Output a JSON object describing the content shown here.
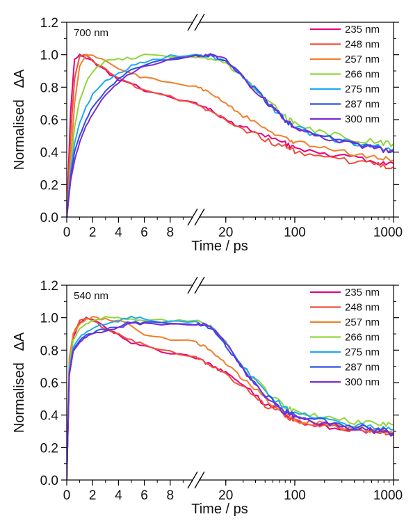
{
  "figure": {
    "background": "#ffffff",
    "break_mark": "//"
  },
  "chart_data": [
    {
      "type": "line",
      "panel_label": "700 nm",
      "xlabel": "Time / ps",
      "ylabel": "Normalised   ΔA",
      "x_scale": "piecewise: linear 0 to 10 ps, then log 10 to 1000 ps (axis break at 10 ps)",
      "xlim": [
        0,
        1000
      ],
      "ylim": [
        0,
        1.2
      ],
      "xticks_linear": [
        0,
        2,
        4,
        6,
        8
      ],
      "xticks_log": [
        20,
        100,
        1000
      ],
      "yticks": [
        0.0,
        0.2,
        0.4,
        0.6,
        0.8,
        1.0,
        1.2
      ],
      "legend_position": "top-right",
      "grid": false,
      "series": [
        {
          "name": "235 nm",
          "color": "#e6007e",
          "x": [
            0,
            0.3,
            0.6,
            1.0,
            1.5,
            2,
            3,
            4,
            5,
            6,
            8,
            10,
            14,
            20,
            30,
            50,
            80,
            100,
            200,
            400,
            700,
            1000
          ],
          "y": [
            0,
            0.65,
            0.97,
            1.0,
            0.98,
            0.96,
            0.9,
            0.85,
            0.82,
            0.78,
            0.74,
            0.7,
            0.66,
            0.6,
            0.55,
            0.5,
            0.45,
            0.42,
            0.39,
            0.36,
            0.34,
            0.33
          ]
        },
        {
          "name": "248 nm",
          "color": "#f04e37",
          "x": [
            0,
            0.3,
            0.6,
            1.0,
            1.5,
            2,
            3,
            4,
            5,
            6,
            8,
            10,
            14,
            20,
            30,
            50,
            80,
            100,
            200,
            400,
            700,
            1000
          ],
          "y": [
            0,
            0.5,
            0.85,
            0.99,
            1.0,
            0.97,
            0.91,
            0.86,
            0.82,
            0.78,
            0.74,
            0.7,
            0.65,
            0.6,
            0.54,
            0.48,
            0.43,
            0.41,
            0.37,
            0.34,
            0.32,
            0.31
          ]
        },
        {
          "name": "257 nm",
          "color": "#f07f2a",
          "x": [
            0,
            0.3,
            0.6,
            1.0,
            1.5,
            2,
            3,
            4,
            5,
            6,
            8,
            10,
            14,
            20,
            30,
            50,
            80,
            100,
            200,
            400,
            700,
            1000
          ],
          "y": [
            0,
            0.35,
            0.7,
            0.93,
            1.0,
            1.0,
            0.96,
            0.91,
            0.88,
            0.86,
            0.83,
            0.81,
            0.76,
            0.7,
            0.62,
            0.55,
            0.49,
            0.46,
            0.42,
            0.39,
            0.37,
            0.35
          ]
        },
        {
          "name": "266 nm",
          "color": "#8fd63a",
          "x": [
            0,
            0.3,
            0.6,
            1.0,
            1.5,
            2,
            3,
            4,
            5,
            6,
            8,
            10,
            14,
            20,
            30,
            50,
            80,
            100,
            200,
            400,
            700,
            1000
          ],
          "y": [
            0,
            0.3,
            0.55,
            0.72,
            0.83,
            0.9,
            0.96,
            0.97,
            0.98,
            1.0,
            0.99,
            0.98,
            0.98,
            0.95,
            0.86,
            0.74,
            0.62,
            0.57,
            0.52,
            0.48,
            0.46,
            0.45
          ]
        },
        {
          "name": "275 nm",
          "color": "#1eaaf1",
          "x": [
            0,
            0.3,
            0.6,
            1.0,
            1.5,
            2,
            3,
            4,
            5,
            6,
            8,
            10,
            14,
            20,
            30,
            50,
            80,
            100,
            200,
            400,
            700,
            1000
          ],
          "y": [
            0,
            0.28,
            0.45,
            0.58,
            0.68,
            0.75,
            0.84,
            0.89,
            0.93,
            0.96,
            0.99,
            1.0,
            0.99,
            0.96,
            0.86,
            0.72,
            0.6,
            0.55,
            0.49,
            0.45,
            0.43,
            0.42
          ]
        },
        {
          "name": "287 nm",
          "color": "#2d4ee8",
          "x": [
            0,
            0.3,
            0.6,
            1.0,
            1.5,
            2,
            3,
            4,
            5,
            6,
            8,
            10,
            14,
            20,
            30,
            50,
            80,
            100,
            200,
            400,
            700,
            1000
          ],
          "y": [
            0,
            0.25,
            0.4,
            0.5,
            0.6,
            0.68,
            0.78,
            0.85,
            0.9,
            0.94,
            0.97,
            0.99,
            1.0,
            0.96,
            0.86,
            0.72,
            0.6,
            0.55,
            0.49,
            0.45,
            0.42,
            0.41
          ]
        },
        {
          "name": "300 nm",
          "color": "#7a2bd6",
          "x": [
            0,
            0.3,
            0.6,
            1.0,
            1.5,
            2,
            3,
            4,
            5,
            6,
            8,
            10,
            14,
            20,
            30,
            50,
            80,
            100,
            200,
            400,
            700,
            1000
          ],
          "y": [
            0,
            0.22,
            0.35,
            0.46,
            0.56,
            0.64,
            0.75,
            0.83,
            0.89,
            0.93,
            0.97,
            0.99,
            1.0,
            0.97,
            0.86,
            0.72,
            0.6,
            0.55,
            0.49,
            0.45,
            0.42,
            0.4
          ]
        }
      ]
    },
    {
      "type": "line",
      "panel_label": "540 nm",
      "xlabel": "Time / ps",
      "ylabel": "Normalised   ΔA",
      "x_scale": "piecewise: linear 0 to 10 ps, then log 10 to 1000 ps (axis break at 10 ps)",
      "xlim": [
        0,
        1000
      ],
      "ylim": [
        0,
        1.2
      ],
      "xticks_linear": [
        0,
        2,
        4,
        6,
        8
      ],
      "xticks_log": [
        20,
        100,
        1000
      ],
      "yticks": [
        0.0,
        0.2,
        0.4,
        0.6,
        0.8,
        1.0,
        1.2
      ],
      "legend_position": "top-right",
      "grid": false,
      "series": [
        {
          "name": "235 nm",
          "color": "#e6007e",
          "x": [
            0,
            0.2,
            0.5,
            1.0,
            1.5,
            2,
            3,
            4,
            5,
            6,
            8,
            10,
            14,
            20,
            30,
            50,
            80,
            100,
            200,
            400,
            700,
            1000
          ],
          "y": [
            0,
            0.7,
            0.88,
            0.97,
            1.0,
            0.99,
            0.94,
            0.89,
            0.85,
            0.82,
            0.78,
            0.75,
            0.71,
            0.66,
            0.58,
            0.47,
            0.4,
            0.37,
            0.33,
            0.31,
            0.3,
            0.28
          ]
        },
        {
          "name": "248 nm",
          "color": "#f04e37",
          "x": [
            0,
            0.2,
            0.5,
            1.0,
            1.5,
            2,
            3,
            4,
            5,
            6,
            8,
            10,
            14,
            20,
            30,
            50,
            80,
            100,
            200,
            400,
            700,
            1000
          ],
          "y": [
            0,
            0.72,
            0.9,
            0.98,
            1.0,
            0.98,
            0.93,
            0.9,
            0.86,
            0.83,
            0.79,
            0.75,
            0.71,
            0.65,
            0.57,
            0.46,
            0.4,
            0.37,
            0.33,
            0.31,
            0.3,
            0.29
          ]
        },
        {
          "name": "257 nm",
          "color": "#f07f2a",
          "x": [
            0,
            0.2,
            0.5,
            1.0,
            1.5,
            2,
            3,
            4,
            5,
            6,
            8,
            10,
            14,
            20,
            30,
            50,
            80,
            100,
            200,
            400,
            700,
            1000
          ],
          "y": [
            0,
            0.75,
            0.9,
            0.96,
            0.99,
            1.0,
            0.99,
            0.98,
            0.95,
            0.9,
            0.87,
            0.85,
            0.8,
            0.72,
            0.62,
            0.5,
            0.4,
            0.37,
            0.34,
            0.32,
            0.3,
            0.29
          ]
        },
        {
          "name": "266 nm",
          "color": "#8fd63a",
          "x": [
            0,
            0.2,
            0.5,
            1.0,
            1.5,
            2,
            3,
            4,
            5,
            6,
            8,
            10,
            14,
            20,
            30,
            50,
            80,
            100,
            200,
            400,
            700,
            1000
          ],
          "y": [
            0,
            0.7,
            0.86,
            0.93,
            0.96,
            0.98,
            1.0,
            1.0,
            0.99,
            0.99,
            0.98,
            0.98,
            0.95,
            0.85,
            0.7,
            0.55,
            0.45,
            0.42,
            0.38,
            0.36,
            0.35,
            0.34
          ]
        },
        {
          "name": "275 nm",
          "color": "#1eaaf1",
          "x": [
            0,
            0.2,
            0.5,
            1.0,
            1.5,
            2,
            3,
            4,
            5,
            6,
            8,
            10,
            14,
            20,
            30,
            50,
            80,
            100,
            200,
            400,
            700,
            1000
          ],
          "y": [
            0,
            0.68,
            0.82,
            0.88,
            0.91,
            0.93,
            0.96,
            0.98,
            1.0,
            0.99,
            0.97,
            0.97,
            0.95,
            0.84,
            0.7,
            0.54,
            0.44,
            0.41,
            0.37,
            0.34,
            0.32,
            0.31
          ]
        },
        {
          "name": "287 nm",
          "color": "#2d4ee8",
          "x": [
            0,
            0.2,
            0.5,
            1.0,
            1.5,
            2,
            3,
            4,
            5,
            6,
            8,
            10,
            14,
            20,
            30,
            50,
            80,
            100,
            200,
            400,
            700,
            1000
          ],
          "y": [
            0,
            0.66,
            0.8,
            0.86,
            0.89,
            0.91,
            0.93,
            0.95,
            0.97,
            0.97,
            0.96,
            0.96,
            0.94,
            0.83,
            0.68,
            0.52,
            0.43,
            0.4,
            0.36,
            0.33,
            0.31,
            0.29
          ]
        },
        {
          "name": "300 nm",
          "color": "#7a2bd6",
          "x": [
            0,
            0.2,
            0.5,
            1.0,
            1.5,
            2,
            3,
            4,
            5,
            6,
            8,
            10,
            14,
            20,
            30,
            50,
            80,
            100,
            200,
            400,
            700,
            1000
          ],
          "y": [
            0,
            0.65,
            0.79,
            0.85,
            0.88,
            0.9,
            0.92,
            0.94,
            0.96,
            0.96,
            0.96,
            0.96,
            0.95,
            0.85,
            0.68,
            0.5,
            0.42,
            0.39,
            0.35,
            0.32,
            0.3,
            0.28
          ]
        }
      ]
    }
  ]
}
